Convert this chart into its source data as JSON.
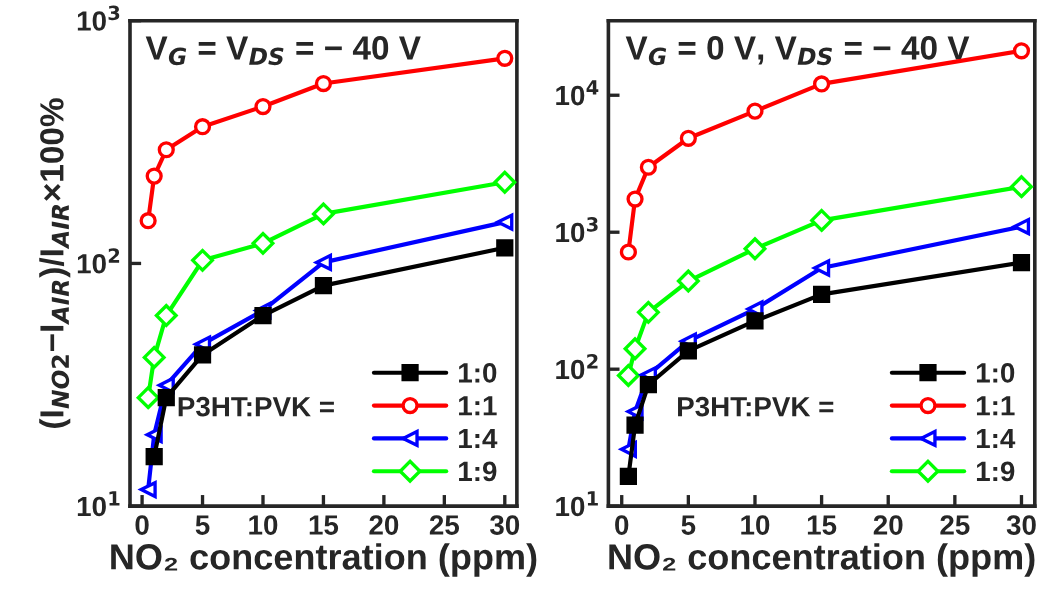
{
  "chart_data": [
    {
      "type": "line",
      "ylabel": "(I$_{NO2}$−I$_{AIR}$)/I$_{AIR}$×100%",
      "xlabel": "NO₂ concentration (ppm)",
      "log": "y",
      "x": [
        0.5,
        1,
        2,
        5,
        10,
        15,
        30
      ],
      "xlim": [
        -1,
        31
      ],
      "xticks": [
        0,
        5,
        10,
        15,
        20,
        25,
        30
      ],
      "ylim": [
        10,
        1000
      ],
      "yticks": [
        {
          "value": 10,
          "label": "10$^{1}$"
        },
        {
          "value": 100,
          "label": "10$^{2}$"
        },
        {
          "value": 1000,
          "label": "10$^{3}$"
        }
      ],
      "legend": "bottom right",
      "grid": false,
      "annotations": [
        "V$_{G}$ = V$_{DS}$ = − 40 V",
        "P3HT:PVK ="
      ],
      "series": [
        {
          "name": "1:0",
          "color": "#000000",
          "marker": "square",
          "values": [
            null,
            16,
            28,
            42,
            61,
            81,
            116
          ]
        },
        {
          "name": "1:1",
          "color": "#ff0000",
          "marker": "circle",
          "values": [
            150,
            229,
            294,
            366,
            443,
            551,
            700
          ]
        },
        {
          "name": "1:4",
          "color": "#0000ff",
          "marker": "triangle",
          "values": [
            11.7,
            19.7,
            31.5,
            46.5,
            64,
            101,
            148
          ]
        },
        {
          "name": "1:9",
          "color": "#00ff00",
          "marker": "diamond",
          "values": [
            28,
            41,
            61,
            103,
            121,
            160,
            216
          ]
        }
      ]
    },
    {
      "type": "line",
      "xlabel": "NO₂ concentration (ppm)",
      "log": "y",
      "x": [
        0.5,
        1,
        2,
        5,
        10,
        15,
        30
      ],
      "xlim": [
        -1,
        31
      ],
      "xticks": [
        0,
        5,
        10,
        15,
        20,
        25,
        30
      ],
      "ylim": [
        10,
        35000
      ],
      "yticks": [
        {
          "value": 10,
          "label": "10$^{1}$"
        },
        {
          "value": 100,
          "label": "10$^{2}$"
        },
        {
          "value": 1000,
          "label": "10$^{3}$"
        },
        {
          "value": 10000,
          "label": "10$^{4}$"
        }
      ],
      "legend": "bottom right",
      "grid": false,
      "annotations": [
        "V$_{G}$ = 0 V, V$_{DS}$ = − 40 V",
        "P3HT:PVK ="
      ],
      "series": [
        {
          "name": "1:0",
          "color": "#000000",
          "marker": "square",
          "values": [
            16.5,
            39,
            77,
            136,
            225,
            352,
            600
          ]
        },
        {
          "name": "1:1",
          "color": "#ff0000",
          "marker": "circle",
          "values": [
            717,
            1745,
            2980,
            4850,
            7660,
            12100,
            21100
          ]
        },
        {
          "name": "1:4",
          "color": "#0000ff",
          "marker": "triangle",
          "values": [
            26,
            49,
            91,
            160,
            275,
            548,
            1100
          ]
        },
        {
          "name": "1:9",
          "color": "#00ff00",
          "marker": "diamond",
          "values": [
            90,
            141,
            260,
            440,
            757,
            1220,
            2150
          ]
        }
      ]
    }
  ]
}
